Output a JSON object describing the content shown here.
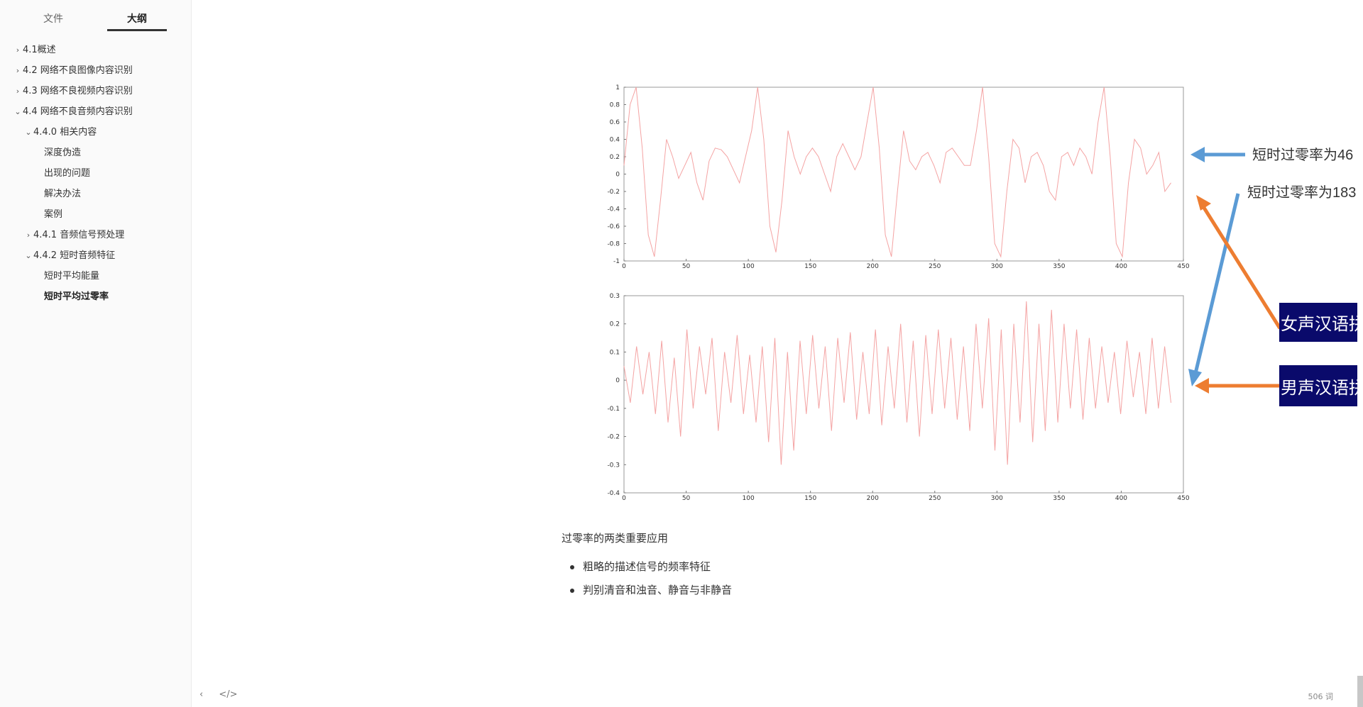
{
  "sidebar": {
    "tabs": {
      "files": "文件",
      "outline": "大纲"
    },
    "items": [
      {
        "label": "4.1概述",
        "arrow": "›"
      },
      {
        "label": "4.2 网络不良图像内容识别",
        "arrow": "›"
      },
      {
        "label": "4.3 网络不良视频内容识别",
        "arrow": "›"
      },
      {
        "label": "4.4 网络不良音频内容识别",
        "arrow": "⌄"
      },
      {
        "label": "4.4.0 相关内容",
        "arrow": "⌄"
      },
      {
        "label": "深度伪造",
        "arrow": ""
      },
      {
        "label": "出现的问题",
        "arrow": ""
      },
      {
        "label": "解决办法",
        "arrow": ""
      },
      {
        "label": "案例",
        "arrow": ""
      },
      {
        "label": "4.4.1 音频信号预处理",
        "arrow": "›"
      },
      {
        "label": "4.4.2 短时音频特征",
        "arrow": "⌄"
      },
      {
        "label": "短时平均能量",
        "arrow": ""
      },
      {
        "label": "短时平均过零率",
        "arrow": ""
      }
    ]
  },
  "figure": {
    "annotation_top": "短时过零率为46",
    "annotation_bottom": "短时过零率为183",
    "label_female": "女声汉语拼音a",
    "label_male": "男声汉语拼音s",
    "colors": {
      "signal": "#f08080",
      "blue_arrow": "#5b9bd5",
      "orange_arrow": "#ed7d31",
      "label_bg": "#0a0a6b"
    }
  },
  "content": {
    "paragraph": "过零率的两类重要应用",
    "bullets": [
      "粗略的描述信号的频率特征",
      "判别清音和浊音、静音与非静音"
    ]
  },
  "footer": {
    "back_icon": "‹",
    "code_icon": "</>",
    "word_count": "506 词"
  },
  "chart_data": [
    {
      "type": "line",
      "x_ticks": [
        0,
        50,
        100,
        150,
        200,
        250,
        300,
        350,
        400,
        450
      ],
      "y_ticks": [
        1,
        0.8,
        0.6,
        0.4,
        0.2,
        0,
        -0.2,
        -0.4,
        -0.6,
        -0.8,
        -1
      ],
      "xlim": [
        0,
        450
      ],
      "ylim": [
        -1,
        1
      ],
      "series": [
        {
          "values": [
            0.1,
            0.8,
            1.0,
            0.3,
            -0.7,
            -0.95,
            -0.3,
            0.4,
            0.2,
            -0.05,
            0.1,
            0.25,
            -0.1,
            -0.3,
            0.15,
            0.3,
            0.28,
            0.2,
            0.05,
            -0.1,
            0.2,
            0.5,
            1.0,
            0.4,
            -0.6,
            -0.9,
            -0.3,
            0.5,
            0.2,
            0.0,
            0.2,
            0.3,
            0.2,
            0.0,
            -0.2,
            0.2,
            0.35,
            0.2,
            0.05,
            0.2,
            0.6,
            1.0,
            0.3,
            -0.7,
            -0.95,
            -0.2,
            0.5,
            0.15,
            0.05,
            0.2,
            0.25,
            0.1,
            -0.1,
            0.25,
            0.3,
            0.2,
            0.1,
            0.1,
            0.5,
            1.0,
            0.2,
            -0.8,
            -0.95,
            -0.2,
            0.4,
            0.3,
            -0.1,
            0.2,
            0.25,
            0.1,
            -0.2,
            -0.3,
            0.2,
            0.25,
            0.1,
            0.3,
            0.2,
            0.0,
            0.6,
            1.0,
            0.2,
            -0.8,
            -0.95,
            -0.1,
            0.4,
            0.3,
            0.0,
            0.1,
            0.25,
            -0.2,
            -0.1
          ]
        }
      ]
    },
    {
      "type": "line",
      "x_ticks": [
        0,
        50,
        100,
        150,
        200,
        250,
        300,
        350,
        400,
        450
      ],
      "y_ticks": [
        0.3,
        0.2,
        0.1,
        0,
        -0.1,
        -0.2,
        -0.3,
        -0.4
      ],
      "xlim": [
        0,
        450
      ],
      "ylim": [
        -0.4,
        0.3
      ],
      "series": [
        {
          "values": [
            0.05,
            -0.08,
            0.12,
            -0.05,
            0.1,
            -0.12,
            0.14,
            -0.15,
            0.08,
            -0.2,
            0.18,
            -0.1,
            0.12,
            -0.05,
            0.15,
            -0.18,
            0.1,
            -0.08,
            0.16,
            -0.12,
            0.09,
            -0.15,
            0.12,
            -0.22,
            0.15,
            -0.3,
            0.1,
            -0.25,
            0.14,
            -0.12,
            0.16,
            -0.1,
            0.12,
            -0.18,
            0.15,
            -0.08,
            0.17,
            -0.14,
            0.1,
            -0.12,
            0.18,
            -0.16,
            0.12,
            -0.1,
            0.2,
            -0.15,
            0.14,
            -0.2,
            0.16,
            -0.12,
            0.18,
            -0.1,
            0.15,
            -0.14,
            0.12,
            -0.18,
            0.2,
            -0.1,
            0.22,
            -0.25,
            0.18,
            -0.3,
            0.2,
            -0.15,
            0.28,
            -0.22,
            0.2,
            -0.18,
            0.25,
            -0.15,
            0.2,
            -0.1,
            0.18,
            -0.14,
            0.15,
            -0.1,
            0.12,
            -0.08,
            0.1,
            -0.12,
            0.14,
            -0.06,
            0.1,
            -0.12,
            0.15,
            -0.1,
            0.12,
            -0.08
          ]
        }
      ]
    }
  ]
}
